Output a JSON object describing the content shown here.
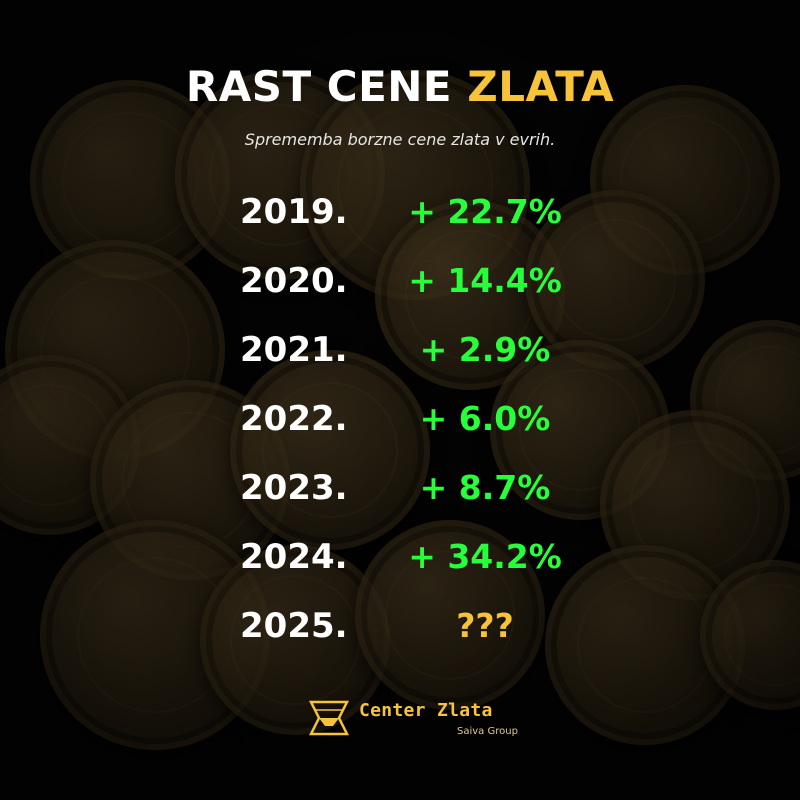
{
  "header": {
    "title_main": "RAST CENE",
    "title_accent": "ZLATA",
    "subtitle": "Sprememba borzne cene zlata v evrih."
  },
  "rows": [
    {
      "year": "2019.",
      "change": "+ 22.7%"
    },
    {
      "year": "2020.",
      "change": "+ 14.4%"
    },
    {
      "year": "2021.",
      "change": "+ 2.9%"
    },
    {
      "year": "2022.",
      "change": "+ 6.0%"
    },
    {
      "year": "2023.",
      "change": "+ 8.7%"
    },
    {
      "year": "2024.",
      "change": "+ 34.2%"
    },
    {
      "year": "2025.",
      "change": "???"
    }
  ],
  "brand": {
    "name": "Center Zlata",
    "tagline": "Saiva Group"
  },
  "colors": {
    "accent_gold": "#f6c33a",
    "positive_green": "#27ff3a",
    "text_white": "#ffffff",
    "background": "#050505"
  }
}
